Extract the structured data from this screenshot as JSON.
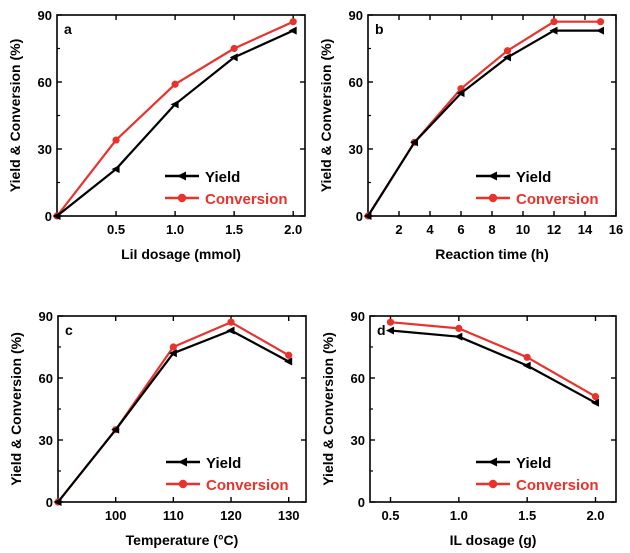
{
  "colors": {
    "yield": "#000000",
    "conversion": "#e8322b"
  },
  "legend": {
    "yield": "Yield",
    "conversion": "Conversion"
  },
  "chart_data": [
    {
      "type": "line",
      "panel_label": "a",
      "xlabel": "LiI dosage (mmol)",
      "ylabel": "Yield & Conversion (%)",
      "xlim": [
        0,
        2.1
      ],
      "ylim": [
        0,
        90
      ],
      "xticks": [
        0.5,
        1.0,
        1.5,
        2.0
      ],
      "xtick_labels": [
        "0.5",
        "1.0",
        "1.5",
        "2.0"
      ],
      "yticks": [
        0,
        30,
        60,
        90
      ],
      "legend_position": "bottom-right",
      "series": [
        {
          "name": "Yield",
          "x": [
            0,
            0.5,
            1.0,
            1.5,
            2.0
          ],
          "y": [
            0,
            21,
            50,
            71,
            83
          ]
        },
        {
          "name": "Conversion",
          "x": [
            0,
            0.5,
            1.0,
            1.5,
            2.0
          ],
          "y": [
            0,
            34,
            59,
            75,
            87
          ]
        }
      ]
    },
    {
      "type": "line",
      "panel_label": "b",
      "xlabel": "Reaction time (h)",
      "ylabel": "Yield & Conversion (%)",
      "xlim": [
        0,
        16
      ],
      "ylim": [
        0,
        90
      ],
      "xticks": [
        2,
        4,
        6,
        8,
        10,
        12,
        14,
        16
      ],
      "xtick_labels": [
        "2",
        "4",
        "6",
        "8",
        "10",
        "12",
        "14",
        "16"
      ],
      "yticks": [
        0,
        30,
        60,
        90
      ],
      "legend_position": "bottom-right",
      "series": [
        {
          "name": "Yield",
          "x": [
            0,
            3,
            6,
            9,
            12,
            15
          ],
          "y": [
            0,
            33,
            55,
            71,
            83,
            83
          ]
        },
        {
          "name": "Conversion",
          "x": [
            0,
            3,
            6,
            9,
            12,
            15
          ],
          "y": [
            0,
            33,
            57,
            74,
            87,
            87
          ]
        }
      ]
    },
    {
      "type": "line",
      "panel_label": "c",
      "xlabel": "Temperature (°C)",
      "ylabel": "Yield & Conversion (%)",
      "xlim": [
        90,
        133
      ],
      "ylim": [
        0,
        90
      ],
      "xticks": [
        100,
        110,
        120,
        130
      ],
      "xtick_labels": [
        "100",
        "110",
        "120",
        "130"
      ],
      "yticks": [
        0,
        30,
        60,
        90
      ],
      "legend_position": "bottom-right",
      "series": [
        {
          "name": "Yield",
          "x": [
            90,
            100,
            110,
            120,
            130
          ],
          "y": [
            0,
            35,
            72,
            83,
            68
          ]
        },
        {
          "name": "Conversion",
          "x": [
            90,
            100,
            110,
            120,
            130
          ],
          "y": [
            0,
            35,
            75,
            87,
            71
          ]
        }
      ]
    },
    {
      "type": "line",
      "panel_label": "d",
      "xlabel": "IL dosage (g)",
      "ylabel": "Yield & Conversion (%)",
      "xlim": [
        0.35,
        2.15
      ],
      "ylim": [
        0,
        90
      ],
      "xticks": [
        0.5,
        1.0,
        1.5,
        2.0
      ],
      "xtick_labels": [
        "0.5",
        "1.0",
        "1.5",
        "2.0"
      ],
      "yticks": [
        0,
        30,
        60,
        90
      ],
      "legend_position": "bottom-right",
      "series": [
        {
          "name": "Yield",
          "x": [
            0.5,
            1.0,
            1.5,
            2.0
          ],
          "y": [
            83,
            80,
            66,
            48
          ]
        },
        {
          "name": "Conversion",
          "x": [
            0.5,
            1.0,
            1.5,
            2.0
          ],
          "y": [
            87,
            84,
            70,
            51
          ]
        }
      ]
    }
  ]
}
